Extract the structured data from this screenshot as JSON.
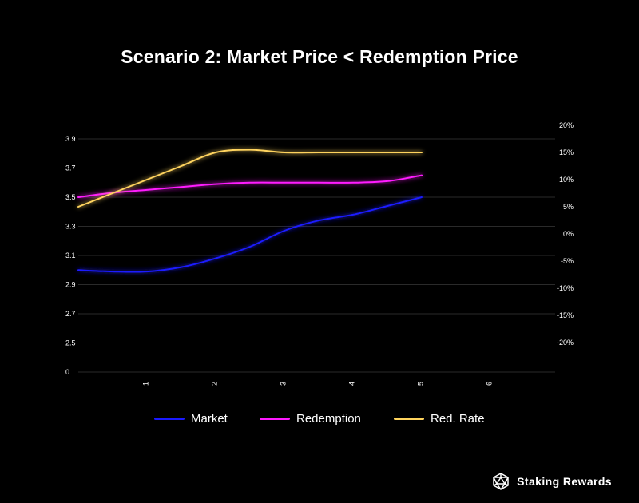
{
  "chart_data": {
    "type": "line",
    "title": "Scenario 2: Market Price < Redemption Price",
    "x_ticks": [
      "1",
      "2",
      "3",
      "4",
      "5",
      "6"
    ],
    "xlim": [
      0,
      7
    ],
    "left_axis": {
      "tick_labels": [
        "0",
        "2.5",
        "2.7",
        "2.9",
        "3.1",
        "3.3",
        "3.5",
        "3.7",
        "3.9"
      ],
      "note": "bottom label 0 marks an axis break below 2.5"
    },
    "right_axis": {
      "tick_labels": [
        "-20%",
        "-15%",
        "-10%",
        "-5%",
        "0%",
        "5%",
        "10%",
        "15%",
        "20%"
      ],
      "ylim": [
        -20,
        20
      ]
    },
    "series": [
      {
        "name": "Market",
        "axis": "left",
        "color": "#1a1aff",
        "x": [
          0,
          0.5,
          1,
          1.5,
          2,
          2.5,
          3,
          3.5,
          4,
          4.5,
          5
        ],
        "y": [
          3.0,
          2.99,
          2.99,
          3.02,
          3.08,
          3.16,
          3.27,
          3.34,
          3.38,
          3.44,
          3.5
        ]
      },
      {
        "name": "Redemption",
        "axis": "left",
        "color": "#ff1aff",
        "x": [
          0,
          0.5,
          1,
          1.5,
          2,
          2.5,
          3,
          3.5,
          4,
          4.5,
          5
        ],
        "y": [
          3.5,
          3.53,
          3.55,
          3.57,
          3.59,
          3.6,
          3.6,
          3.6,
          3.6,
          3.61,
          3.65
        ]
      },
      {
        "name": "Red. Rate",
        "axis": "right",
        "color": "#ffd45e",
        "x": [
          0,
          0.5,
          1,
          1.5,
          2,
          2.5,
          3,
          3.5,
          4,
          4.5,
          5
        ],
        "y": [
          5,
          7.5,
          10,
          12.5,
          15,
          15.5,
          15,
          15,
          15,
          15,
          15
        ]
      }
    ]
  },
  "legend": {
    "market": "Market",
    "redemption": "Redemption",
    "red_rate": "Red. Rate"
  },
  "brand": {
    "name": "Staking Rewards",
    "logo_icon": "polyhedron-logo-icon"
  }
}
